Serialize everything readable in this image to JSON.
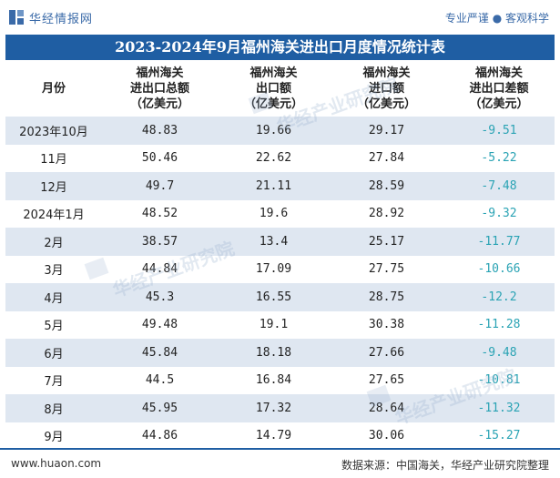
{
  "header": {
    "brand": "华经情报网",
    "slogan": "专业严谨 ● 客观科学"
  },
  "title": "2023-2024年9月福州海关进出口月度情况统计表",
  "table": {
    "columns": [
      "月份",
      "福州海关\n进出口总额\n（亿美元）",
      "福州海关\n出口额\n（亿美元）",
      "福州海关\n进口额\n（亿美元）",
      "福州海关\n进出口差额\n（亿美元）"
    ],
    "rows": [
      [
        "2023年10月",
        "48.83",
        "19.66",
        "29.17",
        "-9.51"
      ],
      [
        "11月",
        "50.46",
        "22.62",
        "27.84",
        "-5.22"
      ],
      [
        "12月",
        "49.7",
        "21.11",
        "28.59",
        "-7.48"
      ],
      [
        "2024年1月",
        "48.52",
        "19.6",
        "28.92",
        "-9.32"
      ],
      [
        "2月",
        "38.57",
        "13.4",
        "25.17",
        "-11.77"
      ],
      [
        "3月",
        "44.84",
        "17.09",
        "27.75",
        "-10.66"
      ],
      [
        "4月",
        "45.3",
        "16.55",
        "28.75",
        "-12.2"
      ],
      [
        "5月",
        "49.48",
        "19.1",
        "30.38",
        "-11.28"
      ],
      [
        "6月",
        "45.84",
        "18.18",
        "27.66",
        "-9.48"
      ],
      [
        "7月",
        "44.5",
        "16.84",
        "27.65",
        "-10.81"
      ],
      [
        "8月",
        "45.95",
        "17.32",
        "28.64",
        "-11.32"
      ],
      [
        "9月",
        "44.86",
        "14.79",
        "30.06",
        "-15.27"
      ]
    ]
  },
  "footer": {
    "url": "www.huaon.com",
    "source": "数据来源：中国海关，华经产业研究院整理"
  },
  "watermark": "华经产业研究院",
  "colors": {
    "title_bg": "#1f5ea3",
    "stripe": "#dfe7f1",
    "negative": "#2aa3b4",
    "brand": "#3a6aa8"
  }
}
